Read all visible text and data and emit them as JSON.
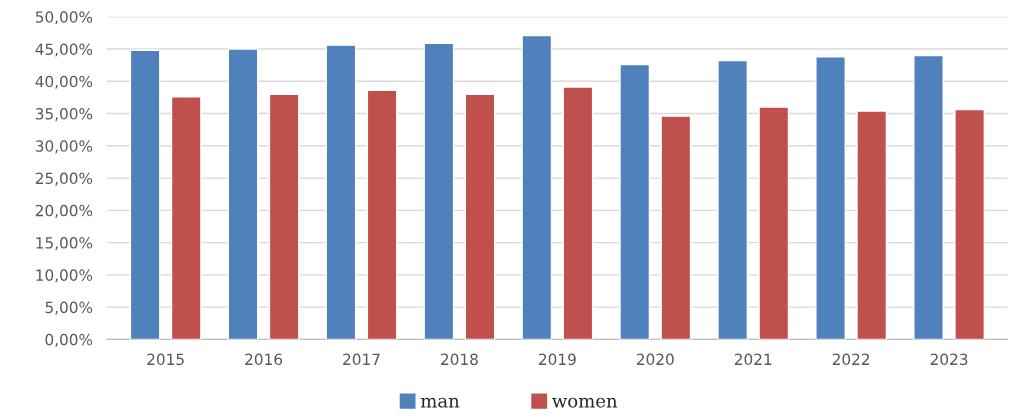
{
  "chart_data": {
    "type": "bar",
    "categories": [
      "2015",
      "2016",
      "2017",
      "2018",
      "2019",
      "2020",
      "2021",
      "2022",
      "2023"
    ],
    "series": [
      {
        "name": "man",
        "color": "#4f81bd",
        "values": [
          44.8,
          45.0,
          45.6,
          45.9,
          47.1,
          42.6,
          43.2,
          43.8,
          44.0
        ]
      },
      {
        "name": "women",
        "color": "#c0504d",
        "values": [
          37.6,
          38.0,
          38.6,
          38.0,
          39.1,
          34.6,
          36.0,
          35.4,
          35.6
        ]
      }
    ],
    "ylim": [
      0,
      50
    ],
    "yticks": [
      {
        "value": 0,
        "label": "0,00%"
      },
      {
        "value": 5,
        "label": "5,00%"
      },
      {
        "value": 10,
        "label": "10,00%"
      },
      {
        "value": 15,
        "label": "15,00%"
      },
      {
        "value": 20,
        "label": "20,00%"
      },
      {
        "value": 25,
        "label": "25,00%"
      },
      {
        "value": 30,
        "label": "30,00%"
      },
      {
        "value": 35,
        "label": "35,00%"
      },
      {
        "value": 40,
        "label": "40,00%"
      },
      {
        "value": 45,
        "label": "45,00%"
      },
      {
        "value": 50,
        "label": "50,00%"
      }
    ],
    "grid": "y",
    "legend": "bottom"
  }
}
